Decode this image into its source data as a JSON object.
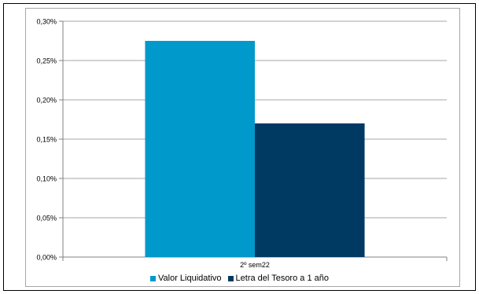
{
  "chart_data": {
    "type": "bar",
    "categories": [
      "2º sem22"
    ],
    "series": [
      {
        "name": "Valor Liquidativo",
        "values": [
          0.275
        ],
        "color": "#0099cc"
      },
      {
        "name": "Letra del Tesoro a 1 año",
        "values": [
          0.17
        ],
        "color": "#003a63"
      }
    ],
    "ylim": [
      0,
      0.3
    ],
    "yticks": [
      "0,00%",
      "0,05%",
      "0,10%",
      "0,15%",
      "0,20%",
      "0,25%",
      "0,30%"
    ],
    "grid": true,
    "legend_position": "bottom"
  }
}
